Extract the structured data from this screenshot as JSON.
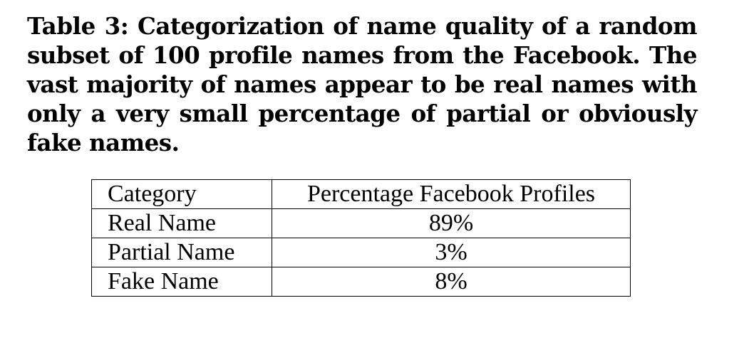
{
  "caption": {
    "label": "Table 3:",
    "lines": [
      "Categorization of name quality of a random",
      "subset of 100 profile names from the Facebook.  The",
      "vast majority of names appear to be real names with",
      "only a very small percentage of partial or obviously",
      "fake names."
    ]
  },
  "table": {
    "headers": [
      "Category",
      "Percentage Facebook Profiles"
    ],
    "rows": [
      [
        "Real Name",
        "89%"
      ],
      [
        "Partial Name",
        "3%"
      ],
      [
        "Fake Name",
        "8%"
      ]
    ]
  }
}
